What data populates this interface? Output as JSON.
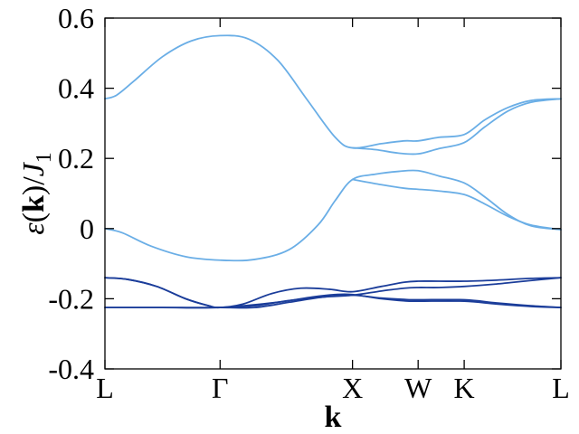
{
  "chart_data": {
    "type": "line",
    "xlabel": "k",
    "ylabel": {
      "epsilon": "ε",
      "open": "(",
      "k": "k",
      "close": ")",
      "slash": "/",
      "J": "J",
      "sub": "1"
    },
    "ylim": [
      -0.4,
      0.6
    ],
    "yticks": [
      {
        "value": 0.6,
        "label": "0.6"
      },
      {
        "value": 0.4,
        "label": "0.4"
      },
      {
        "value": 0.2,
        "label": "0.2"
      },
      {
        "value": 0.0,
        "label": "0"
      },
      {
        "value": -0.2,
        "label": "-0.2"
      },
      {
        "value": -0.4,
        "label": "-0.4"
      }
    ],
    "xticks": [
      {
        "pos": 0.0,
        "label": "L"
      },
      {
        "pos": 1.0,
        "label": "Γ"
      },
      {
        "pos": 2.15,
        "label": "X"
      },
      {
        "pos": 2.72,
        "label": "W"
      },
      {
        "pos": 3.12,
        "label": "K"
      },
      {
        "pos": 3.96,
        "label": "L"
      }
    ],
    "grid": false,
    "colors": {
      "upper_bands": "#6aaee6",
      "lower_bands": "#1b3d9a",
      "axes": "#000000"
    },
    "series": [
      {
        "group": "upper",
        "color": "#6aaee6",
        "points": [
          [
            0.0,
            0.37
          ],
          [
            0.1,
            0.38
          ],
          [
            0.25,
            0.42
          ],
          [
            0.5,
            0.49
          ],
          [
            0.75,
            0.535
          ],
          [
            1.0,
            0.55
          ],
          [
            1.25,
            0.54
          ],
          [
            1.5,
            0.48
          ],
          [
            1.75,
            0.37
          ],
          [
            2.0,
            0.26
          ],
          [
            2.15,
            0.23
          ],
          [
            2.4,
            0.242
          ],
          [
            2.6,
            0.25
          ],
          [
            2.72,
            0.25
          ],
          [
            2.9,
            0.26
          ],
          [
            3.12,
            0.268
          ],
          [
            3.3,
            0.31
          ],
          [
            3.5,
            0.345
          ],
          [
            3.7,
            0.365
          ],
          [
            3.96,
            0.37
          ]
        ]
      },
      {
        "group": "upper",
        "color": "#6aaee6",
        "points": [
          [
            2.15,
            0.23
          ],
          [
            2.35,
            0.225
          ],
          [
            2.55,
            0.215
          ],
          [
            2.72,
            0.213
          ],
          [
            2.9,
            0.228
          ],
          [
            3.12,
            0.245
          ],
          [
            3.3,
            0.29
          ],
          [
            3.5,
            0.335
          ],
          [
            3.7,
            0.36
          ],
          [
            3.96,
            0.37
          ]
        ]
      },
      {
        "group": "upper",
        "color": "#6aaee6",
        "points": [
          [
            0.0,
            0.0
          ],
          [
            0.15,
            -0.012
          ],
          [
            0.4,
            -0.05
          ],
          [
            0.7,
            -0.08
          ],
          [
            1.0,
            -0.09
          ],
          [
            1.3,
            -0.088
          ],
          [
            1.6,
            -0.06
          ],
          [
            1.85,
            0.01
          ],
          [
            2.0,
            0.08
          ],
          [
            2.15,
            0.14
          ],
          [
            2.35,
            0.155
          ],
          [
            2.55,
            0.163
          ],
          [
            2.72,
            0.165
          ],
          [
            2.9,
            0.15
          ],
          [
            3.12,
            0.13
          ],
          [
            3.3,
            0.09
          ],
          [
            3.5,
            0.04
          ],
          [
            3.7,
            0.008
          ],
          [
            3.96,
            -0.003
          ]
        ]
      },
      {
        "group": "upper",
        "color": "#6aaee6",
        "points": [
          [
            2.15,
            0.14
          ],
          [
            2.4,
            0.125
          ],
          [
            2.6,
            0.115
          ],
          [
            2.72,
            0.112
          ],
          [
            2.9,
            0.107
          ],
          [
            3.12,
            0.097
          ],
          [
            3.3,
            0.07
          ],
          [
            3.5,
            0.035
          ],
          [
            3.7,
            0.01
          ],
          [
            3.96,
            -0.003
          ]
        ]
      },
      {
        "group": "lower",
        "color": "#1b3d9a",
        "points": [
          [
            0.0,
            -0.14
          ],
          [
            0.2,
            -0.145
          ],
          [
            0.45,
            -0.165
          ],
          [
            0.7,
            -0.2
          ],
          [
            0.9,
            -0.22
          ],
          [
            1.0,
            -0.225
          ],
          [
            1.2,
            -0.215
          ],
          [
            1.45,
            -0.185
          ],
          [
            1.7,
            -0.17
          ],
          [
            1.95,
            -0.173
          ],
          [
            2.15,
            -0.18
          ],
          [
            2.4,
            -0.165
          ],
          [
            2.6,
            -0.153
          ],
          [
            2.72,
            -0.15
          ],
          [
            2.9,
            -0.15
          ],
          [
            3.12,
            -0.15
          ],
          [
            3.4,
            -0.147
          ],
          [
            3.7,
            -0.142
          ],
          [
            3.96,
            -0.14
          ]
        ]
      },
      {
        "group": "lower",
        "color": "#1b3d9a",
        "points": [
          [
            0.0,
            -0.14
          ],
          [
            0.2,
            -0.145
          ],
          [
            0.45,
            -0.165
          ],
          [
            0.7,
            -0.2
          ],
          [
            0.9,
            -0.22
          ],
          [
            1.0,
            -0.225
          ],
          [
            1.3,
            -0.22
          ],
          [
            1.6,
            -0.205
          ],
          [
            1.9,
            -0.195
          ],
          [
            2.15,
            -0.19
          ],
          [
            2.4,
            -0.178
          ],
          [
            2.6,
            -0.17
          ],
          [
            2.72,
            -0.168
          ],
          [
            2.9,
            -0.168
          ],
          [
            3.12,
            -0.165
          ],
          [
            3.4,
            -0.158
          ],
          [
            3.7,
            -0.148
          ],
          [
            3.96,
            -0.14
          ]
        ]
      },
      {
        "group": "lower",
        "color": "#1b3d9a",
        "points": [
          [
            0.0,
            -0.225
          ],
          [
            0.5,
            -0.225
          ],
          [
            1.0,
            -0.225
          ],
          [
            1.5,
            -0.21
          ],
          [
            1.8,
            -0.195
          ],
          [
            2.0,
            -0.188
          ],
          [
            2.15,
            -0.188
          ],
          [
            2.4,
            -0.2
          ],
          [
            2.6,
            -0.206
          ],
          [
            2.72,
            -0.207
          ],
          [
            3.12,
            -0.207
          ],
          [
            3.4,
            -0.215
          ],
          [
            3.7,
            -0.222
          ],
          [
            3.96,
            -0.225
          ]
        ]
      },
      {
        "group": "lower",
        "color": "#1b3d9a",
        "points": [
          [
            0.0,
            -0.225
          ],
          [
            0.5,
            -0.225
          ],
          [
            1.0,
            -0.225
          ],
          [
            1.3,
            -0.225
          ],
          [
            1.6,
            -0.21
          ],
          [
            1.9,
            -0.195
          ],
          [
            2.15,
            -0.19
          ],
          [
            2.4,
            -0.198
          ],
          [
            2.6,
            -0.202
          ],
          [
            2.72,
            -0.203
          ],
          [
            3.12,
            -0.203
          ],
          [
            3.4,
            -0.212
          ],
          [
            3.7,
            -0.22
          ],
          [
            3.96,
            -0.225
          ]
        ]
      }
    ]
  }
}
